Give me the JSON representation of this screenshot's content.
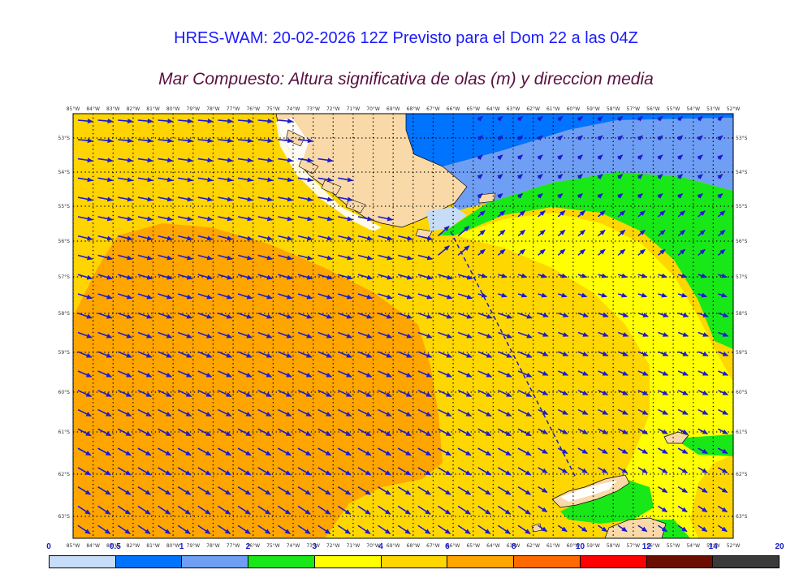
{
  "header": {
    "title": "HRES-WAM: 20-02-2026 12Z Previsto para el Dom 22 a las 04Z",
    "subtitle": "Mar Compuesto: Altura significativa de olas (m) y direccion media"
  },
  "map": {
    "lon_labels": [
      "85°W",
      "84°W",
      "83°W",
      "82°W",
      "81°W",
      "80°W",
      "79°W",
      "78°W",
      "77°W",
      "76°W",
      "75°W",
      "74°W",
      "73°W",
      "72°W",
      "71°W",
      "70°W",
      "69°W",
      "68°W",
      "67°W",
      "66°W",
      "65°W",
      "64°W",
      "63°W",
      "62°W",
      "61°W",
      "60°W",
      "59°W",
      "58°W",
      "57°W",
      "56°W",
      "55°W",
      "54°W",
      "53°W",
      "52°W"
    ],
    "lat_labels": [
      "53°S",
      "54°S",
      "55°S",
      "56°S",
      "57°S",
      "58°S",
      "59°S",
      "60°S",
      "61°S",
      "62°S",
      "63°S"
    ],
    "colors": {
      "land": "#fad9a8",
      "ice_white": "#ffffff",
      "arrow": "#1c1ccc",
      "grid": "#000000"
    }
  },
  "colorbar": {
    "tick_labels": [
      "0",
      "0.5",
      "1",
      "2",
      "3",
      "4",
      "6",
      "8",
      "10",
      "12",
      "14",
      "20"
    ],
    "colors": [
      "#c6dcf7",
      "#0073ff",
      "#6f9ff5",
      "#18e818",
      "#ffff00",
      "#ffd700",
      "#ffa500",
      "#ff6a00",
      "#ff0000",
      "#6b0e00",
      "#3a3a3a"
    ]
  }
}
